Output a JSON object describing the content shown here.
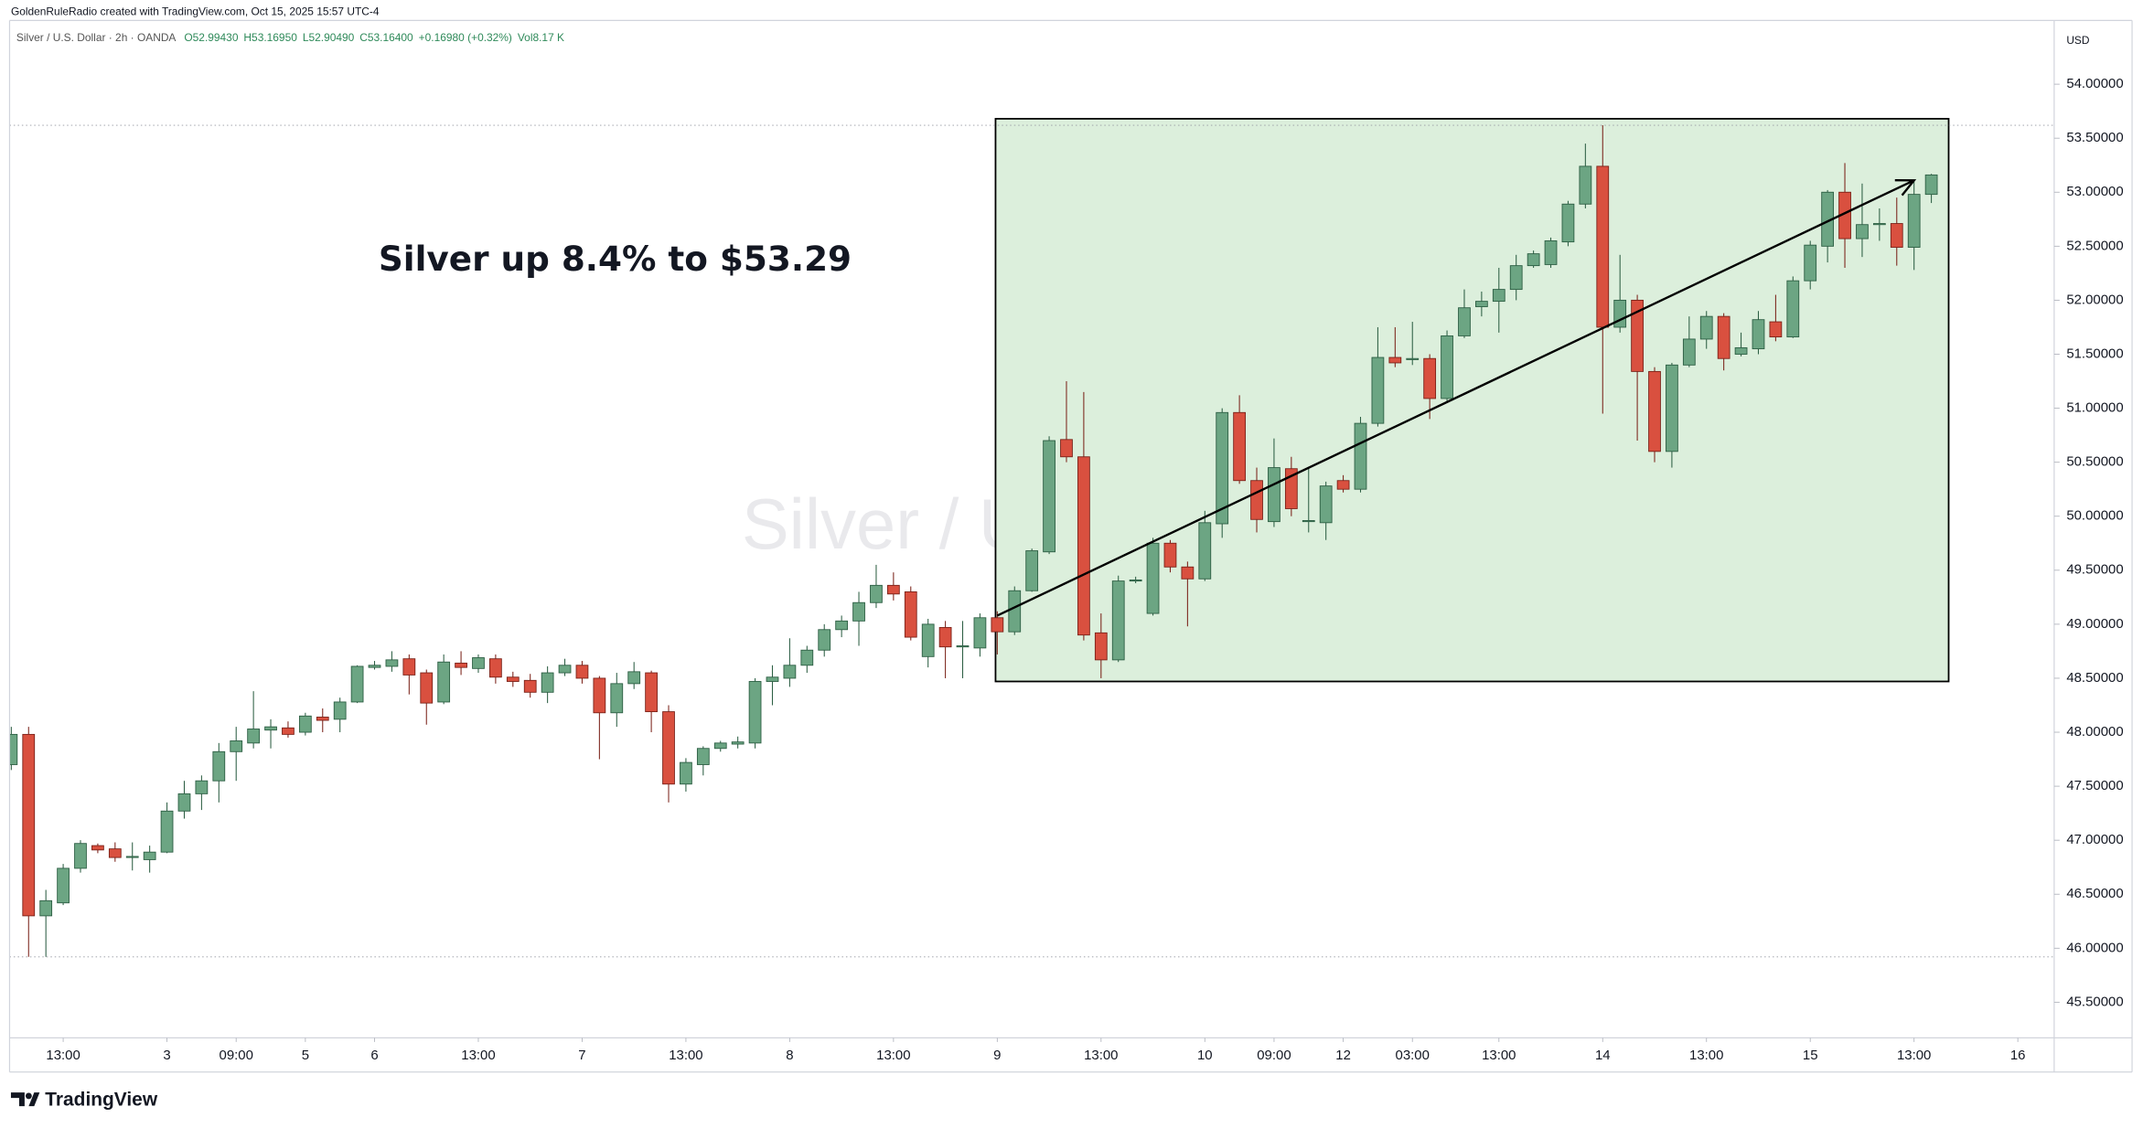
{
  "chart_data": {
    "type": "candlestick",
    "attribution": "GoldenRuleRadio created with TradingView.com, Oct 15, 2025 15:57 UTC-4",
    "symbol": "Silver / U.S. Dollar · 2h · OANDA",
    "quote": [
      "O52.99430",
      "H53.16950",
      "L52.90490",
      "C53.16400",
      "+0.16980 (+0.32%)",
      "Vol8.17 K"
    ],
    "watermark": "Silver / U.S. Dollar",
    "annotation": "Silver up 8.4% to $53.29",
    "currency": "USD",
    "brand": "TradingView",
    "up_color": "#6ca583",
    "down_color": "#d9503f",
    "highlight_color": "#dcefdc",
    "xlim": [
      -0.1,
      118.1
    ],
    "ylim": [
      45.17,
      54.59
    ],
    "xticks": [
      {
        "value": 3,
        "label": "13:00"
      },
      {
        "value": 9,
        "label": "3"
      },
      {
        "value": 13,
        "label": "09:00"
      },
      {
        "value": 17,
        "label": "5"
      },
      {
        "value": 21,
        "label": "6"
      },
      {
        "value": 27,
        "label": "13:00"
      },
      {
        "value": 33,
        "label": "7"
      },
      {
        "value": 39,
        "label": "13:00"
      },
      {
        "value": 45,
        "label": "8"
      },
      {
        "value": 51,
        "label": "13:00"
      },
      {
        "value": 57,
        "label": "9"
      },
      {
        "value": 63,
        "label": "13:00"
      },
      {
        "value": 69,
        "label": "10"
      },
      {
        "value": 73,
        "label": "09:00"
      },
      {
        "value": 77,
        "label": "12"
      },
      {
        "value": 81,
        "label": "03:00"
      },
      {
        "value": 86,
        "label": "13:00"
      },
      {
        "value": 92,
        "label": "14"
      },
      {
        "value": 98,
        "label": "13:00"
      },
      {
        "value": 104,
        "label": "15"
      },
      {
        "value": 110,
        "label": "13:00"
      },
      {
        "value": 116,
        "label": "16"
      }
    ],
    "yticks": [
      {
        "value": 45.5,
        "label": "45.50000"
      },
      {
        "value": 46,
        "label": "46.00000"
      },
      {
        "value": 46.5,
        "label": "46.50000"
      },
      {
        "value": 47,
        "label": "47.00000"
      },
      {
        "value": 47.5,
        "label": "47.50000"
      },
      {
        "value": 48,
        "label": "48.00000"
      },
      {
        "value": 48.5,
        "label": "48.50000"
      },
      {
        "value": 49,
        "label": "49.00000"
      },
      {
        "value": 49.5,
        "label": "49.50000"
      },
      {
        "value": 50,
        "label": "50.00000"
      },
      {
        "value": 50.5,
        "label": "50.50000"
      },
      {
        "value": 51,
        "label": "51.00000"
      },
      {
        "value": 51.5,
        "label": "51.50000"
      },
      {
        "value": 52,
        "label": "52.00000"
      },
      {
        "value": 52.5,
        "label": "52.50000"
      },
      {
        "value": 53,
        "label": "53.00000"
      },
      {
        "value": 53.5,
        "label": "53.50000"
      },
      {
        "value": 54,
        "label": "54.00000"
      }
    ],
    "hlines": [
      53.62,
      45.92
    ],
    "highlight": {
      "x": [
        56.9,
        112
      ],
      "y": [
        48.47,
        53.68
      ]
    },
    "arrow": {
      "x": [
        57,
        110
      ],
      "y": [
        49.08,
        53.11
      ]
    },
    "open": [
      47.7,
      47.98,
      46.3,
      46.42,
      46.74,
      46.95,
      46.92,
      46.84,
      46.82,
      46.89,
      47.27,
      47.43,
      47.55,
      47.82,
      47.9,
      48.02,
      48.04,
      48.0,
      48.14,
      48.12,
      48.28,
      48.6,
      48.61,
      48.68,
      48.55,
      48.28,
      48.64,
      48.59,
      48.68,
      48.51,
      48.48,
      48.37,
      48.55,
      48.62,
      48.5,
      48.18,
      48.45,
      48.55,
      48.19,
      47.52,
      47.7,
      47.85,
      47.89,
      47.9,
      48.47,
      48.5,
      48.62,
      48.76,
      48.95,
      49.03,
      49.2,
      49.36,
      49.3,
      48.7,
      48.97,
      48.79,
      48.78,
      49.06,
      48.93,
      49.31,
      49.67,
      50.71,
      50.55,
      48.92,
      48.67,
      49.4,
      49.1,
      49.75,
      49.53,
      49.42,
      49.93,
      50.96,
      50.33,
      49.95,
      50.44,
      49.95,
      49.94,
      50.33,
      50.25,
      50.86,
      51.47,
      51.45,
      51.46,
      51.09,
      51.67,
      51.94,
      51.99,
      52.1,
      52.32,
      52.33,
      52.54,
      52.89,
      53.24,
      51.75,
      52.0,
      51.34,
      50.6,
      51.4,
      51.64,
      51.85,
      51.5,
      51.55,
      51.8,
      51.66,
      52.18,
      52.5,
      53.0,
      52.57,
      52.7,
      52.71,
      52.49,
      52.98
    ],
    "high": [
      48.05,
      48.05,
      46.54,
      46.78,
      47.0,
      46.97,
      46.98,
      46.98,
      46.95,
      47.35,
      47.55,
      47.6,
      47.9,
      48.05,
      48.38,
      48.12,
      48.1,
      48.18,
      48.22,
      48.32,
      48.62,
      48.66,
      48.75,
      48.72,
      48.58,
      48.72,
      48.75,
      48.72,
      48.72,
      48.56,
      48.54,
      48.61,
      48.68,
      48.66,
      48.52,
      48.55,
      48.65,
      48.57,
      48.25,
      47.76,
      47.87,
      47.92,
      47.96,
      48.5,
      48.62,
      48.87,
      48.8,
      49.0,
      49.08,
      49.3,
      49.55,
      49.48,
      49.35,
      49.05,
      49.03,
      49.03,
      49.1,
      49.12,
      49.35,
      49.7,
      50.74,
      51.25,
      51.15,
      49.1,
      49.45,
      49.44,
      49.8,
      49.78,
      49.58,
      50.05,
      51.0,
      51.12,
      50.45,
      50.72,
      50.55,
      50.45,
      50.32,
      50.38,
      50.92,
      51.75,
      51.75,
      51.8,
      51.5,
      51.72,
      52.1,
      52.08,
      52.3,
      52.42,
      52.46,
      52.58,
      52.92,
      53.45,
      53.62,
      52.42,
      52.05,
      51.38,
      51.42,
      51.85,
      51.9,
      51.88,
      51.7,
      51.9,
      52.05,
      52.22,
      52.55,
      53.02,
      53.27,
      53.08,
      52.85,
      52.95,
      53.1,
      53.17
    ],
    "low": [
      47.65,
      45.92,
      45.92,
      46.4,
      46.7,
      46.88,
      46.8,
      46.72,
      46.7,
      46.88,
      47.2,
      47.28,
      47.35,
      47.55,
      47.85,
      47.85,
      47.95,
      47.97,
      48.0,
      48.0,
      48.27,
      48.58,
      48.56,
      48.35,
      48.07,
      48.26,
      48.53,
      48.55,
      48.45,
      48.42,
      48.32,
      48.27,
      48.52,
      48.45,
      47.75,
      48.05,
      48.4,
      48.0,
      47.35,
      47.45,
      47.6,
      47.82,
      47.85,
      47.85,
      48.25,
      48.42,
      48.55,
      48.7,
      48.88,
      48.8,
      49.15,
      49.22,
      48.85,
      48.6,
      48.5,
      48.5,
      48.7,
      48.72,
      48.9,
      49.3,
      49.65,
      50.5,
      48.85,
      48.5,
      48.65,
      49.38,
      49.08,
      49.48,
      48.98,
      49.4,
      49.8,
      50.3,
      49.85,
      49.9,
      50.0,
      49.85,
      49.78,
      50.22,
      50.22,
      50.83,
      51.38,
      51.4,
      50.9,
      51.05,
      51.65,
      51.85,
      51.7,
      52.0,
      52.3,
      52.3,
      52.5,
      52.85,
      50.95,
      51.7,
      50.7,
      50.5,
      50.45,
      51.38,
      51.55,
      51.35,
      51.48,
      51.5,
      51.62,
      51.65,
      52.1,
      52.35,
      52.3,
      52.4,
      52.55,
      52.32,
      52.28,
      52.9
    ],
    "close": [
      47.98,
      46.3,
      46.44,
      46.74,
      46.97,
      46.91,
      46.84,
      46.85,
      46.89,
      47.27,
      47.43,
      47.55,
      47.82,
      47.92,
      48.03,
      48.05,
      47.98,
      48.15,
      48.11,
      48.28,
      48.61,
      48.62,
      48.67,
      48.53,
      48.27,
      48.65,
      48.6,
      48.69,
      48.51,
      48.47,
      48.37,
      48.55,
      48.62,
      48.5,
      48.18,
      48.45,
      48.56,
      48.19,
      47.52,
      47.72,
      47.85,
      47.9,
      47.91,
      48.47,
      48.51,
      48.62,
      48.76,
      48.95,
      49.03,
      49.2,
      49.36,
      49.28,
      48.88,
      49.0,
      48.79,
      48.8,
      49.06,
      48.93,
      49.31,
      49.68,
      50.7,
      50.55,
      48.9,
      48.67,
      49.4,
      49.41,
      49.75,
      49.53,
      49.42,
      49.94,
      50.96,
      50.33,
      49.97,
      50.45,
      50.07,
      49.96,
      50.28,
      50.25,
      50.86,
      51.47,
      51.42,
      51.46,
      51.09,
      51.67,
      51.93,
      51.99,
      52.1,
      52.32,
      52.43,
      52.55,
      52.89,
      53.24,
      51.75,
      52.0,
      51.34,
      50.6,
      51.4,
      51.64,
      51.85,
      51.46,
      51.56,
      51.82,
      51.66,
      52.18,
      52.51,
      53.0,
      52.57,
      52.7,
      52.71,
      52.49,
      52.98,
      53.16
    ]
  }
}
